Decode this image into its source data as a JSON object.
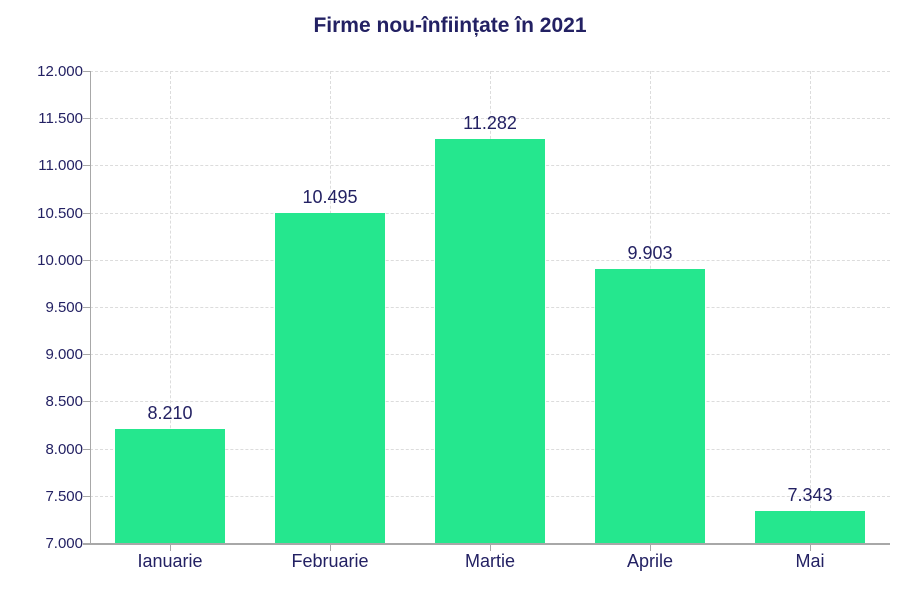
{
  "chart_data": {
    "type": "bar",
    "title": "Firme nou-înființate în 2021",
    "categories": [
      "Ianuarie",
      "Februarie",
      "Martie",
      "Aprile",
      "Mai"
    ],
    "values": [
      8210,
      10495,
      11282,
      9903,
      7343
    ],
    "value_labels": [
      "8.210",
      "10.495",
      "11.282",
      "9.903",
      "7.343"
    ],
    "xlabel": "",
    "ylabel": "",
    "ylim": [
      7000,
      12000
    ],
    "ytick_step": 500,
    "ytick_labels": [
      "7.000",
      "7.500",
      "8.000",
      "8.500",
      "9.000",
      "9.500",
      "10.000",
      "10.500",
      "11.000",
      "11.500",
      "12.000"
    ],
    "grid": "dotted horizontal lines at each y tick and dotted vertical lines at each bar center",
    "legend": "none",
    "colors": {
      "bar_fill": "#25e78e",
      "text": "#232163",
      "axis_line": "#a8a8a8",
      "gridline": "#dcdcdc",
      "background": "#ffffff"
    }
  }
}
